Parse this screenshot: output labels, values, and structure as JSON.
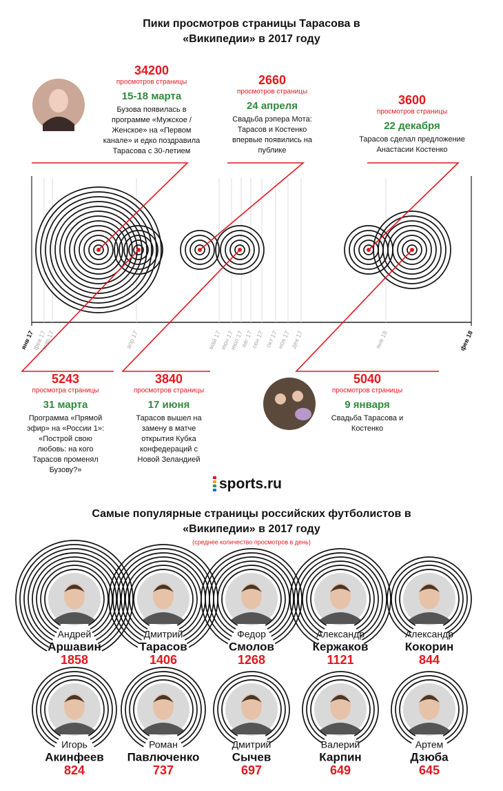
{
  "header": {
    "title_lines": [
      "Пики просмотров страницы Тарасова в",
      "«Википедии»  в 2017 году"
    ]
  },
  "timeline": {
    "months": [
      "янв 17",
      "фев 17",
      "мар 17",
      "апр 17",
      "май 17",
      "июн 17",
      "июл 17",
      "авг 17",
      "сен 17",
      "окт 17",
      "ноя 17",
      "дек 17",
      "янв 18",
      "фев 18"
    ],
    "events_top": [
      {
        "views": 34200,
        "unit": "просмотров страницы",
        "date": "15-18 марта",
        "description": [
          "Бузова появилась в",
          "программе «Мужское /",
          "Женское» на «Первом",
          "канале» и едко поздравила",
          "Тарасова с 30-летием"
        ]
      },
      {
        "views": 2660,
        "unit": "просмотров страницы",
        "date": "24 апреля",
        "description": [
          "Свадьба рэпера Мота:",
          "Тарасов и Костенко",
          "впервые появились на",
          "публике"
        ]
      },
      {
        "views": 3600,
        "unit": "просмотров страницы",
        "date": "22 декабря",
        "description": [
          "Тарасов сделал предложение",
          "Анастасии Костенко"
        ]
      }
    ],
    "events_bottom": [
      {
        "views": 5243,
        "unit": "просмотра страницы",
        "date": "31 марта",
        "description": [
          "Программа «Прямой",
          "эфир» на «России 1»:",
          "«Построй свою",
          "любовь: на кого",
          "Тарасов променял",
          "Бузову?»"
        ]
      },
      {
        "views": 3840,
        "unit": "просмотров страницы",
        "date": "17 июня",
        "description": [
          "Тарасов вышел на",
          "замену в матче",
          "открытия Кубка",
          "конфедераций с",
          "Новой Зеландией"
        ]
      },
      {
        "views": 5040,
        "unit": "просмотров страницы",
        "date": "9 января",
        "description": [
          "Свадьба Тарасова и",
          "Костенко"
        ]
      }
    ]
  },
  "logo": "sports.ru",
  "players_section": {
    "title_lines": [
      "Самые популярные страницы российских футболистов в",
      "«Википедии»  в 2017 году"
    ],
    "subtitle": "(среднее количество просмотров в день)",
    "players": [
      {
        "first_name": "Андрей",
        "last_name": "Аршавин",
        "views": 1858
      },
      {
        "first_name": "Дмитрий",
        "last_name": "Тарасов",
        "views": 1406
      },
      {
        "first_name": "Федор",
        "last_name": "Смолов",
        "views": 1268
      },
      {
        "first_name": "Александр",
        "last_name": "Кержаков",
        "views": 1121
      },
      {
        "first_name": "Александр",
        "last_name": "Кокорин",
        "views": 844
      },
      {
        "first_name": "Игорь",
        "last_name": "Акинфеев",
        "views": 824
      },
      {
        "first_name": "Роман",
        "last_name": "Павлюченко",
        "views": 737
      },
      {
        "first_name": "Дмитрий",
        "last_name": "Сычев",
        "views": 697
      },
      {
        "first_name": "Валерий",
        "last_name": "Карпин",
        "views": 649
      },
      {
        "first_name": "Артем",
        "last_name": "Дзюба",
        "views": 645
      }
    ]
  }
}
